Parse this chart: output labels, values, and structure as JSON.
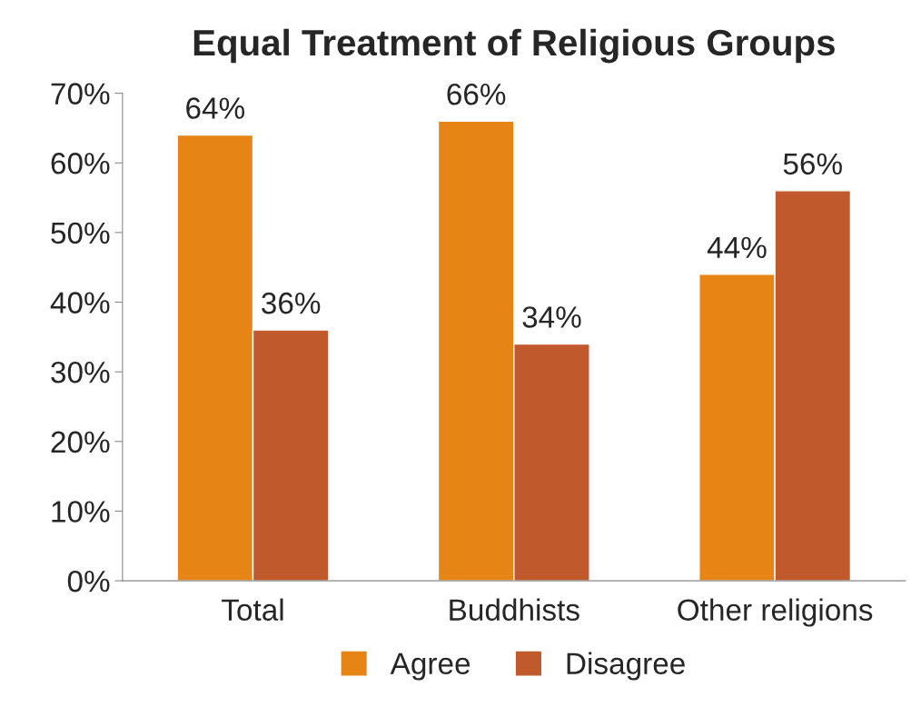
{
  "chart_data": {
    "type": "bar",
    "title": "Equal Treatment of Religious Groups",
    "categories": [
      "Total",
      "Buddhists",
      "Other religions"
    ],
    "series": [
      {
        "name": "Agree",
        "color": "#e68415",
        "values": [
          64,
          66,
          44
        ],
        "value_labels": [
          "64%",
          "66%",
          "44%"
        ]
      },
      {
        "name": "Disagree",
        "color": "#c05a2c",
        "values": [
          36,
          34,
          56
        ],
        "value_labels": [
          "36%",
          "34%",
          "56%"
        ]
      }
    ],
    "ylim": [
      0,
      70
    ],
    "yticks": [
      {
        "value": 0,
        "label": "0%"
      },
      {
        "value": 10,
        "label": "10%"
      },
      {
        "value": 20,
        "label": "20%"
      },
      {
        "value": 30,
        "label": "30%"
      },
      {
        "value": 40,
        "label": "40%"
      },
      {
        "value": 50,
        "label": "50%"
      },
      {
        "value": 60,
        "label": "60%"
      },
      {
        "value": 70,
        "label": "70%"
      }
    ],
    "grid": false,
    "legend": "bottom"
  }
}
